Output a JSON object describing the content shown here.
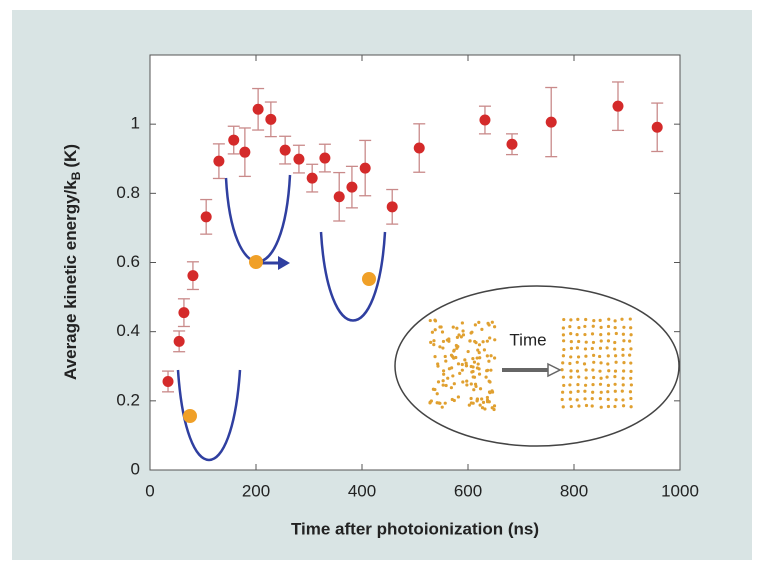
{
  "chart_data": {
    "type": "scatter",
    "x_label": "Time after photoionization (ns)",
    "y_label": {
      "text": "Average kinetic energy/k",
      "subscript": "B",
      "unit": "(K)"
    },
    "inset_label": "Time",
    "xlim": [
      0,
      1000
    ],
    "xticks": [
      0,
      200,
      400,
      600,
      800,
      1000
    ],
    "ylim": [
      0,
      1.2
    ],
    "yticks": [
      0,
      0.2,
      0.4,
      0.6,
      0.8,
      1
    ],
    "series": [
      {
        "color": "#d42a2a",
        "error_color": "#c98a8a",
        "x": [
          34,
          55,
          64,
          81,
          106,
          130,
          158,
          179,
          204,
          228,
          255,
          281,
          306,
          330,
          357,
          381,
          406,
          457,
          508,
          632,
          683,
          757,
          883,
          957
        ],
        "values": [
          0.256,
          0.372,
          0.455,
          0.562,
          0.732,
          0.893,
          0.954,
          0.919,
          1.043,
          1.014,
          0.925,
          0.899,
          0.844,
          0.902,
          0.79,
          0.818,
          0.873,
          0.761,
          0.931,
          1.012,
          0.942,
          1.006,
          1.052,
          0.991
        ],
        "errors": [
          0.03,
          0.03,
          0.04,
          0.04,
          0.05,
          0.05,
          0.04,
          0.07,
          0.06,
          0.05,
          0.04,
          0.04,
          0.04,
          0.04,
          0.07,
          0.06,
          0.08,
          0.05,
          0.07,
          0.04,
          0.03,
          0.1,
          0.07,
          0.07
        ]
      }
    ]
  }
}
